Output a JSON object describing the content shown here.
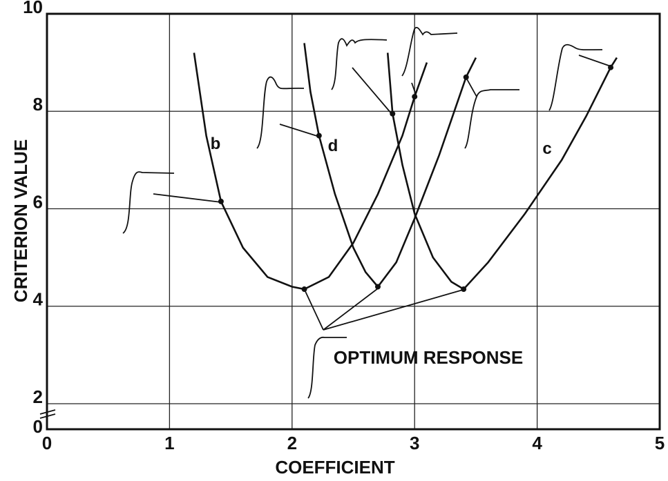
{
  "chart_data": {
    "type": "line",
    "xlabel": "COEFFICIENT",
    "ylabel": "CRITERION VALUE",
    "xlim": [
      0,
      5
    ],
    "xticks": [
      0,
      1,
      2,
      3,
      4,
      5
    ],
    "ylim": [
      0,
      10
    ],
    "yticks": [
      0,
      2,
      4,
      6,
      8,
      10
    ],
    "y_axis_break": true,
    "grid": true,
    "annotations": [
      "OPTIMUM RESPONSE"
    ],
    "series": [
      {
        "name": "b",
        "color": "#111111",
        "x": [
          1.2,
          1.3,
          1.42,
          1.6,
          1.8,
          2.0,
          2.1,
          2.3,
          2.5,
          2.7,
          2.9,
          3.0,
          3.1
        ],
        "values": [
          9.2,
          7.5,
          6.15,
          5.2,
          4.6,
          4.4,
          4.35,
          4.6,
          5.3,
          6.3,
          7.5,
          8.3,
          9.0
        ]
      },
      {
        "name": "d",
        "color": "#111111",
        "x": [
          2.1,
          2.15,
          2.22,
          2.35,
          2.5,
          2.6,
          2.7,
          2.85,
          3.0,
          3.2,
          3.42,
          3.5
        ],
        "values": [
          9.4,
          8.4,
          7.5,
          6.3,
          5.2,
          4.7,
          4.4,
          4.9,
          5.8,
          7.1,
          8.7,
          9.1
        ]
      },
      {
        "name": "c",
        "color": "#111111",
        "x": [
          2.78,
          2.82,
          2.9,
          3.0,
          3.15,
          3.3,
          3.4,
          3.6,
          3.9,
          4.2,
          4.4,
          4.6,
          4.65
        ],
        "values": [
          9.2,
          7.95,
          6.9,
          5.9,
          5.0,
          4.5,
          4.35,
          4.9,
          5.9,
          7.0,
          7.9,
          8.9,
          9.1
        ]
      }
    ]
  }
}
